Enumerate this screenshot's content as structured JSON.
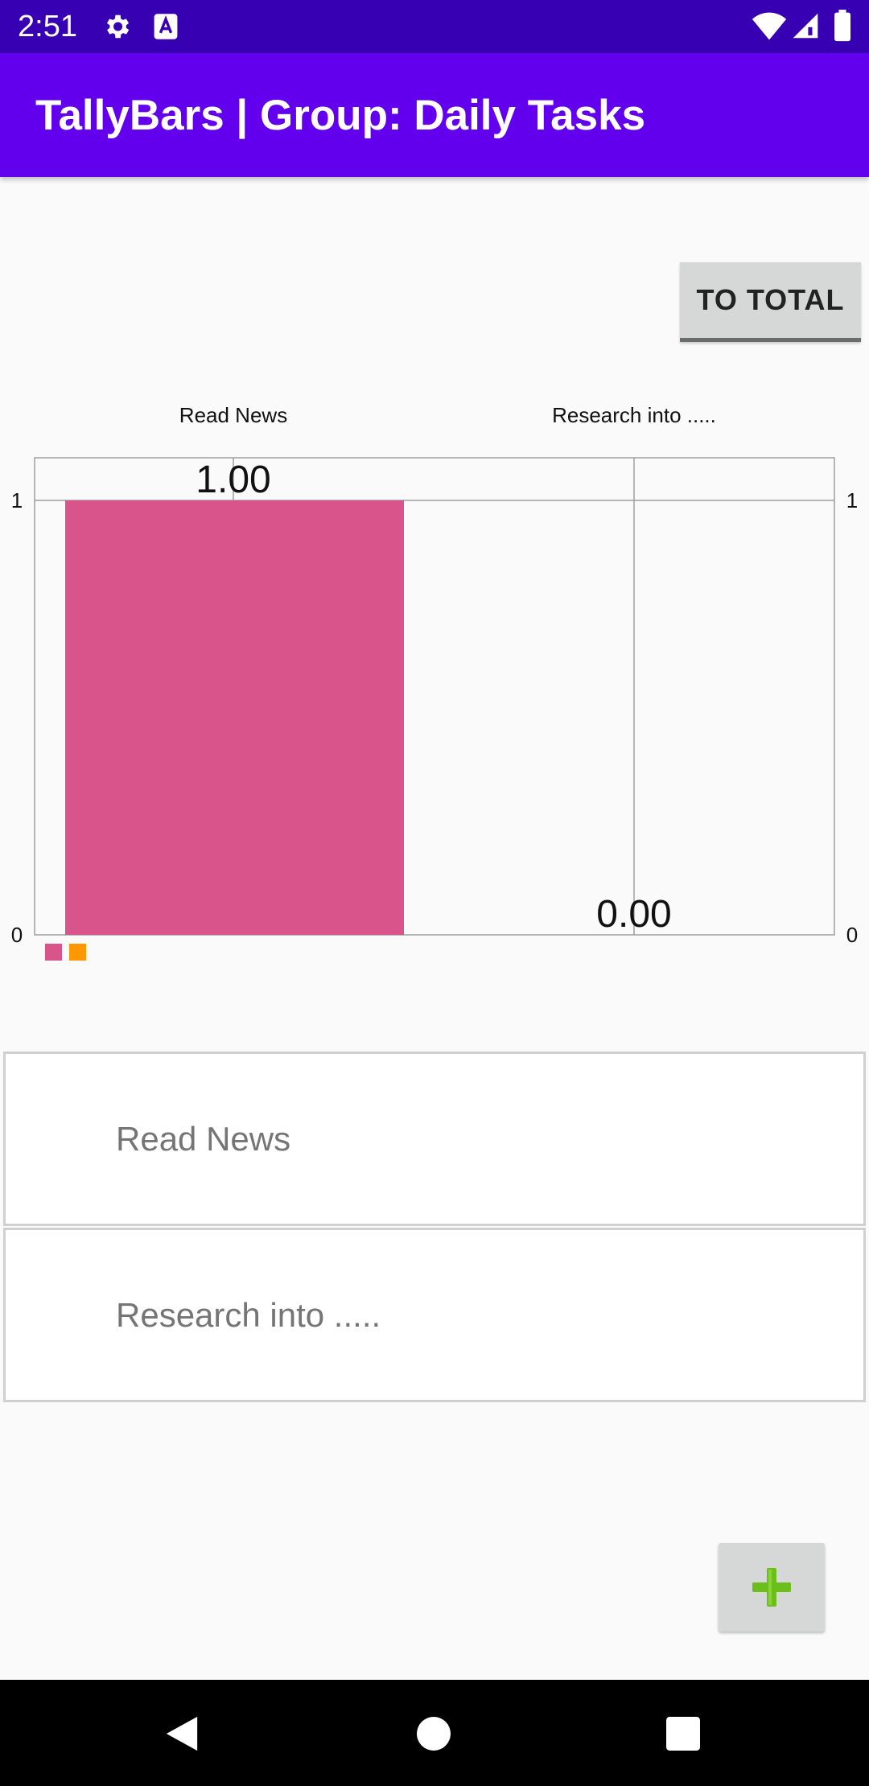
{
  "status_bar": {
    "time": "2:51",
    "left_icons": [
      "gear-icon",
      "font-a-icon"
    ],
    "right_icons": [
      "wifi-icon",
      "signal-icon",
      "battery-icon"
    ]
  },
  "app_bar": {
    "title": "TallyBars | Group: Daily Tasks"
  },
  "controls": {
    "total_button_label": "TO TOTAL",
    "add_button_icon": "plus-icon"
  },
  "colors": {
    "status_bar": "#3700b3",
    "app_bar": "#6200ee",
    "series_1": "#d9548b",
    "series_2": "#ff9800",
    "add_icon": "#6cbf1a"
  },
  "chart_data": {
    "type": "bar",
    "categories": [
      "Read News",
      "Research into ....."
    ],
    "values": [
      1,
      0
    ],
    "value_labels": [
      "1.00",
      "0.00"
    ],
    "colors": [
      "#d9548b",
      "#ff9800"
    ],
    "ylim": [
      0,
      1
    ],
    "y_ticks_left": [
      "0",
      "1"
    ],
    "y_ticks_right": [
      "0",
      "1"
    ],
    "grid": true,
    "legend": "bottom-left",
    "title": "",
    "xlabel": "",
    "ylabel": ""
  },
  "list": {
    "items": [
      {
        "label": "Read News"
      },
      {
        "label": "Research into ....."
      }
    ]
  },
  "nav_bar": {
    "icons": [
      "back-icon",
      "home-icon",
      "recents-icon"
    ]
  }
}
